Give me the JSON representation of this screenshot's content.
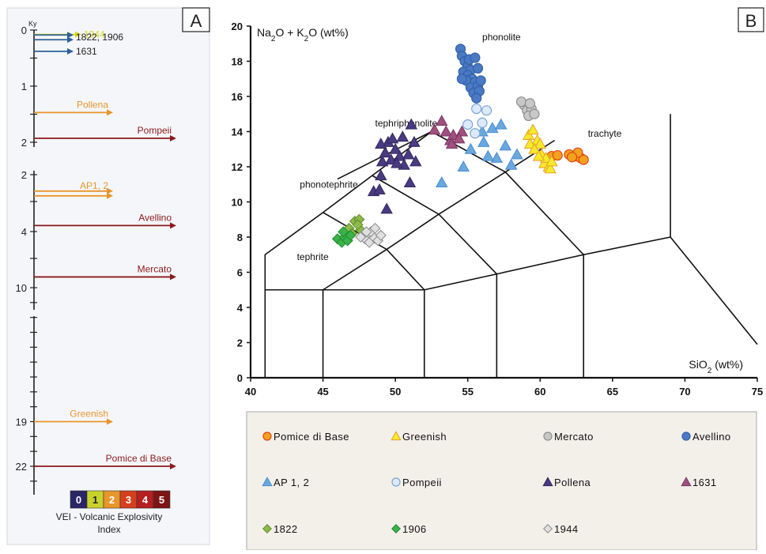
{
  "timeline": {
    "panel_label": "A",
    "axis_unit": "Ky",
    "segments": [
      {
        "ticks": [
          {
            "v": 0,
            "label": "0"
          },
          {
            "v": 0.5,
            "label": ""
          },
          {
            "v": 1,
            "label": "1"
          },
          {
            "v": 1.5,
            "label": ""
          },
          {
            "v": 2,
            "label": "2"
          }
        ]
      },
      {
        "ticks": [
          {
            "v": 2,
            "label": "2"
          },
          {
            "v": 3,
            "label": ""
          },
          {
            "v": 4,
            "label": "4"
          },
          {
            "v": 7,
            "label": ""
          },
          {
            "v": 10,
            "label": "10"
          }
        ]
      },
      {
        "ticks": [
          {
            "v": 11,
            "label": ""
          },
          {
            "v": 12,
            "label": ""
          },
          {
            "v": 13,
            "label": ""
          },
          {
            "v": 14,
            "label": ""
          },
          {
            "v": 15,
            "label": ""
          },
          {
            "v": 16,
            "label": ""
          },
          {
            "v": 17,
            "label": ""
          },
          {
            "v": 18,
            "label": ""
          },
          {
            "v": 19,
            "label": "19"
          },
          {
            "v": 20,
            "label": ""
          },
          {
            "v": 21,
            "label": ""
          },
          {
            "v": 22,
            "label": "22"
          },
          {
            "v": 23,
            "label": ""
          }
        ]
      }
    ],
    "events": [
      {
        "label": "1944",
        "age_ky": 0.08,
        "vei": 1,
        "color": "#d4d81f",
        "double": false
      },
      {
        "label": "1822, 1906",
        "age_ky": 0.13,
        "vei": 0,
        "color": "#2f5f9a",
        "double": true
      },
      {
        "label": "1631",
        "age_ky": 0.38,
        "vei": 0,
        "color": "#2f5f9a",
        "double": false
      },
      {
        "label": "Pollena",
        "age_ky": 1.47,
        "vei": 2,
        "color": "#e8952a",
        "double": false
      },
      {
        "label": "Pompeii",
        "age_ky": 1.93,
        "vei": 4,
        "color": "#8b1a1a",
        "double": false
      },
      {
        "label": "AP1, 2",
        "age_ky": 2.7,
        "vei": 2,
        "color": "#e8952a",
        "double": true
      },
      {
        "label": "Avellino",
        "age_ky": 3.8,
        "vei": 4,
        "color": "#8b1a1a",
        "double": false
      },
      {
        "label": "Mercato",
        "age_ky": 8.9,
        "vei": 4,
        "color": "#8b1a1a",
        "double": false
      },
      {
        "label": "Greenish",
        "age_ky": 19,
        "vei": 2,
        "color": "#e8952a",
        "double": false
      },
      {
        "label": "Pomice di Base",
        "age_ky": 22,
        "vei": 4,
        "color": "#8b1a1a",
        "double": false
      }
    ],
    "vei_scale": [
      {
        "value": "0",
        "color": "#2a2566"
      },
      {
        "value": "1",
        "color": "#c9d12c"
      },
      {
        "value": "2",
        "color": "#e8952a"
      },
      {
        "value": "3",
        "color": "#d4401f"
      },
      {
        "value": "4",
        "color": "#b52020"
      },
      {
        "value": "5",
        "color": "#7d1515"
      }
    ],
    "vei_label_line1": "VEI - Volcanic Explosivity",
    "vei_label_line2": "Index"
  },
  "chart_data": {
    "type": "scatter",
    "panel_label": "B",
    "xlabel": "SiO2 (wt%)",
    "ylabel": "Na2O + K2O (wt%)",
    "xlim": [
      40,
      75
    ],
    "ylim": [
      0,
      20
    ],
    "x_ticks": [
      40,
      45,
      50,
      55,
      60,
      65,
      70,
      75
    ],
    "y_ticks": [
      0,
      2,
      4,
      6,
      8,
      10,
      12,
      14,
      16,
      18,
      20
    ],
    "field_labels": [
      {
        "text": "phonolite",
        "x": 56,
        "y": 19.2
      },
      {
        "text": "trachyte",
        "x": 63.3,
        "y": 13.7
      },
      {
        "text": "tephriphonolite",
        "x": 48.6,
        "y": 14.3
      },
      {
        "text": "phonotephrite",
        "x": 43.4,
        "y": 10.8
      },
      {
        "text": "tephrite",
        "x": 43.2,
        "y": 6.7
      }
    ],
    "tas_lines": [
      [
        [
          41,
          0
        ],
        [
          41,
          7
        ],
        [
          45,
          9.4
        ],
        [
          48.4,
          11.5
        ],
        [
          52.5,
          14
        ],
        [
          57.6,
          11.7
        ],
        [
          63,
          7
        ],
        [
          69,
          8
        ],
        [
          75,
          1.9
        ]
      ],
      [
        [
          45,
          0
        ],
        [
          45,
          5
        ],
        [
          41,
          5
        ]
      ],
      [
        [
          45,
          5
        ],
        [
          52,
          5
        ],
        [
          52,
          0
        ]
      ],
      [
        [
          52,
          5
        ],
        [
          57,
          5.9
        ],
        [
          57,
          0
        ]
      ],
      [
        [
          57,
          5.9
        ],
        [
          63,
          7
        ],
        [
          63,
          0
        ]
      ],
      [
        [
          45,
          5
        ],
        [
          49.4,
          7.3
        ],
        [
          53,
          9.3
        ],
        [
          57.6,
          11.7
        ],
        [
          61,
          13.5
        ]
      ],
      [
        [
          45,
          9.4
        ],
        [
          49.4,
          7.3
        ],
        [
          52,
          5
        ]
      ],
      [
        [
          48.4,
          11.5
        ],
        [
          53,
          9.3
        ],
        [
          57,
          5.9
        ]
      ],
      [
        [
          52.5,
          14
        ],
        [
          46,
          11.3
        ]
      ],
      [
        [
          69,
          8
        ],
        [
          69,
          15
        ]
      ]
    ],
    "series": [
      {
        "name": "Pomice di Base",
        "marker": "circle",
        "fill": "#f2a21c",
        "stroke": "#e0451a",
        "points": [
          [
            60.8,
            12.6
          ],
          [
            61.2,
            12.65
          ],
          [
            62,
            12.7
          ],
          [
            62.5,
            12.6
          ],
          [
            62.8,
            12.5
          ],
          [
            63,
            12.4
          ],
          [
            62.6,
            12.8
          ],
          [
            62.2,
            12.55
          ]
        ]
      },
      {
        "name": "Greenish",
        "marker": "triangle",
        "fill": "#f7ea2a",
        "stroke": "#e8a02a",
        "points": [
          [
            59.2,
            13.8
          ],
          [
            59.5,
            14.1
          ],
          [
            59.8,
            13.5
          ],
          [
            60,
            13.3
          ],
          [
            59.3,
            13.3
          ],
          [
            59.6,
            13
          ],
          [
            60.1,
            12.7
          ],
          [
            60.3,
            12.2
          ],
          [
            60.6,
            12
          ],
          [
            60.4,
            12.5
          ],
          [
            60.7,
            11.9
          ],
          [
            59.9,
            12.6
          ],
          [
            60.8,
            12.3
          ]
        ]
      },
      {
        "name": "Mercato",
        "marker": "circle",
        "fill": "#c8c8c8",
        "stroke": "#8e8e8e",
        "points": [
          [
            58.9,
            15.5
          ],
          [
            59.1,
            15.2
          ],
          [
            59.4,
            15.3
          ],
          [
            59.2,
            14.9
          ],
          [
            59.6,
            15
          ],
          [
            58.7,
            15.7
          ],
          [
            59.3,
            15.6
          ]
        ]
      },
      {
        "name": "Avellino",
        "marker": "circle",
        "fill": "#4a7ac4",
        "stroke": "#3560a8",
        "points": [
          [
            54.5,
            18.7
          ],
          [
            54.6,
            18.3
          ],
          [
            54.8,
            18.0
          ],
          [
            55.0,
            17.7
          ],
          [
            54.7,
            17.4
          ],
          [
            55.2,
            17.5
          ],
          [
            55.0,
            17.2
          ],
          [
            55.3,
            17.0
          ],
          [
            54.9,
            16.9
          ],
          [
            55.5,
            16.8
          ],
          [
            55.2,
            16.5
          ],
          [
            55.7,
            16.6
          ],
          [
            55.4,
            16.2
          ],
          [
            55.8,
            16.3
          ],
          [
            55.6,
            15.9
          ],
          [
            55.1,
            18.1
          ],
          [
            55.5,
            18.2
          ],
          [
            55.7,
            17.6
          ],
          [
            54.6,
            17.0
          ],
          [
            55.9,
            16.9
          ]
        ]
      },
      {
        "name": "AP 1, 2",
        "marker": "triangle",
        "fill": "#6aa9df",
        "stroke": "#4a8ccd",
        "points": [
          [
            53.2,
            11.1
          ],
          [
            54.7,
            12.0
          ],
          [
            55.2,
            13.0
          ],
          [
            56.0,
            14.0
          ],
          [
            56.7,
            14.2
          ],
          [
            57.0,
            12.5
          ],
          [
            57.6,
            13.2
          ],
          [
            58.0,
            12.1
          ],
          [
            56.4,
            12.6
          ],
          [
            58.4,
            12.7
          ],
          [
            56.1,
            13.4
          ],
          [
            57.3,
            14.4
          ]
        ]
      },
      {
        "name": "Pompeii",
        "marker": "circle",
        "fill": "#ddeafb",
        "stroke": "#7aa4d4",
        "points": [
          [
            55.0,
            14.4
          ],
          [
            55.6,
            15.3
          ],
          [
            56.0,
            14.5
          ],
          [
            56.3,
            15.2
          ],
          [
            55.5,
            13.9
          ]
        ]
      },
      {
        "name": "Pollena",
        "marker": "triangle",
        "fill": "#4a3a82",
        "stroke": "#33295c",
        "points": [
          [
            48.5,
            10.6
          ],
          [
            48.9,
            10.7
          ],
          [
            49.0,
            11.5
          ],
          [
            49.1,
            12.3
          ],
          [
            49.3,
            12.8
          ],
          [
            49.5,
            13.4
          ],
          [
            49.7,
            12.4
          ],
          [
            50.0,
            13.0
          ],
          [
            50.3,
            12.6
          ],
          [
            50.6,
            12.1
          ],
          [
            50.9,
            12.7
          ],
          [
            51.0,
            11.1
          ],
          [
            51.3,
            13.4
          ],
          [
            51.1,
            14.4
          ],
          [
            49.0,
            13.3
          ],
          [
            50.5,
            13.7
          ],
          [
            50.1,
            12.2
          ],
          [
            49.4,
            9.6
          ],
          [
            51.4,
            12.3
          ],
          [
            49.8,
            13.6
          ]
        ]
      },
      {
        "name": "1631",
        "marker": "triangle",
        "fill": "#a05080",
        "stroke": "#7a3460",
        "points": [
          [
            52.7,
            14.1
          ],
          [
            53.2,
            14.6
          ],
          [
            53.5,
            14.0
          ],
          [
            53.8,
            13.5
          ],
          [
            54.0,
            13.8
          ],
          [
            53.9,
            13.3
          ],
          [
            54.6,
            14.0
          ],
          [
            54.4,
            13.6
          ]
        ]
      },
      {
        "name": "1822",
        "marker": "diamond",
        "fill": "#8dbb4a",
        "stroke": "#5f8a2a",
        "points": [
          [
            46.8,
            8.5
          ],
          [
            47.2,
            8.9
          ],
          [
            47.5,
            9.0
          ],
          [
            47.0,
            8.2
          ],
          [
            47.6,
            8.4
          ],
          [
            47.4,
            8.7
          ]
        ]
      },
      {
        "name": "1906",
        "marker": "diamond",
        "fill": "#3ab34a",
        "stroke": "#1f8a30",
        "points": [
          [
            46.0,
            7.9
          ],
          [
            46.3,
            7.7
          ],
          [
            46.5,
            8.0
          ],
          [
            46.7,
            7.8
          ],
          [
            46.4,
            8.3
          ],
          [
            46.9,
            8.1
          ]
        ]
      },
      {
        "name": "1944",
        "marker": "diamond",
        "fill": "#e0e0e0",
        "stroke": "#8a8a8a",
        "points": [
          [
            47.9,
            7.9
          ],
          [
            48.2,
            7.7
          ],
          [
            48.5,
            8.0
          ],
          [
            48.8,
            7.8
          ],
          [
            48.3,
            8.3
          ],
          [
            48.6,
            8.5
          ],
          [
            49.0,
            8.1
          ],
          [
            48.0,
            8.3
          ],
          [
            47.6,
            8.0
          ]
        ]
      }
    ],
    "legend": {
      "placement": "bottom",
      "background": "#f3f0ea",
      "entries": [
        {
          "label": "Pomice di Base",
          "marker": "circle",
          "fill": "#f2a21c",
          "stroke": "#e0451a"
        },
        {
          "label": "Greenish",
          "marker": "triangle",
          "fill": "#f7ea2a",
          "stroke": "#e8a02a"
        },
        {
          "label": "Mercato",
          "marker": "circle",
          "fill": "#c8c8c8",
          "stroke": "#8e8e8e"
        },
        {
          "label": "Avellino",
          "marker": "circle",
          "fill": "#4a7ac4",
          "stroke": "#3560a8"
        },
        {
          "label": "AP 1, 2",
          "marker": "triangle",
          "fill": "#6aa9df",
          "stroke": "#4a8ccd"
        },
        {
          "label": "Pompeii",
          "marker": "circle",
          "fill": "#ddeafb",
          "stroke": "#7aa4d4"
        },
        {
          "label": "Pollena",
          "marker": "triangle",
          "fill": "#4a3a82",
          "stroke": "#33295c"
        },
        {
          "label": "1631",
          "marker": "triangle",
          "fill": "#a05080",
          "stroke": "#7a3460"
        },
        {
          "label": "1822",
          "marker": "diamond",
          "fill": "#8dbb4a",
          "stroke": "#5f8a2a"
        },
        {
          "label": "1906",
          "marker": "diamond",
          "fill": "#3ab34a",
          "stroke": "#1f8a30"
        },
        {
          "label": "1944",
          "marker": "diamond",
          "fill": "#e0e0e0",
          "stroke": "#8a8a8a"
        }
      ]
    }
  }
}
